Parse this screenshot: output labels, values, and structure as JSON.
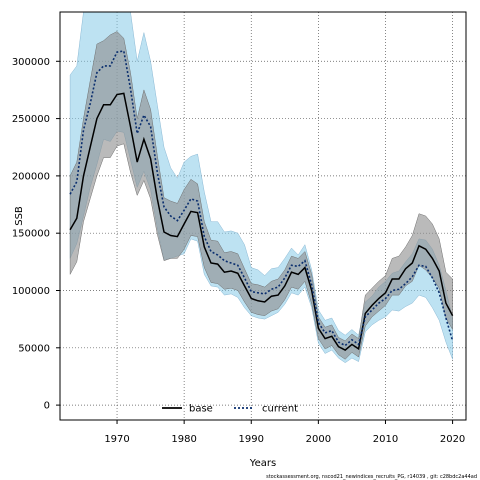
{
  "chart_data": {
    "type": "line",
    "xlabel": "Years",
    "ylabel": "SSB",
    "xlim": [
      1961.5,
      2022
    ],
    "ylim": [
      -13000,
      343000
    ],
    "xticks": [
      1970,
      1980,
      1990,
      2000,
      2010,
      2020
    ],
    "yticks": [
      0,
      50000,
      100000,
      150000,
      200000,
      250000,
      300000
    ],
    "xtick_labels": [
      "1970",
      "1980",
      "1990",
      "2000",
      "2010",
      "2020"
    ],
    "ytick_labels": [
      "0",
      "50000",
      "100000",
      "150000",
      "200000",
      "250000",
      "300000"
    ],
    "grid": true,
    "legend_position": "bottom-center",
    "footnote": "stockassessment.org, nscod21_newindices_recruits_PG, r14039 , git: c28bdc2a44ad",
    "colors": {
      "base": "#000000",
      "current": "#0a2e6e",
      "base_band": "#8c8c8c",
      "current_band": "#87cbe8"
    },
    "series": [
      {
        "name": "base",
        "style": "solid",
        "x": [
          1963,
          1964,
          1965,
          1966,
          1967,
          1968,
          1969,
          1970,
          1971,
          1972,
          1973,
          1974,
          1975,
          1976,
          1977,
          1978,
          1979,
          1980,
          1981,
          1982,
          1983,
          1984,
          1985,
          1986,
          1987,
          1988,
          1989,
          1990,
          1991,
          1992,
          1993,
          1994,
          1995,
          1996,
          1997,
          1998,
          1999,
          2000,
          2001,
          2002,
          2003,
          2004,
          2005,
          2006,
          2007,
          2008,
          2009,
          2010,
          2011,
          2012,
          2013,
          2014,
          2015,
          2016,
          2017,
          2018,
          2019,
          2020
        ],
        "y": [
          153000,
          163000,
          200000,
          225000,
          250000,
          262000,
          262000,
          271000,
          272000,
          243000,
          212000,
          232000,
          215000,
          180000,
          151000,
          148000,
          147000,
          158000,
          169000,
          168000,
          138000,
          124000,
          123000,
          116000,
          117000,
          115000,
          104000,
          93000,
          91000,
          90000,
          95000,
          96000,
          104000,
          116000,
          114000,
          120000,
          100000,
          67000,
          58000,
          60000,
          51000,
          48000,
          53000,
          49000,
          80000,
          87000,
          93000,
          98000,
          110000,
          110000,
          119000,
          124000,
          139000,
          136000,
          128000,
          117000,
          89000,
          78000
        ],
        "lower": [
          114000,
          125000,
          160000,
          180000,
          200000,
          216000,
          216000,
          226000,
          228000,
          203000,
          183000,
          196000,
          180000,
          149000,
          126000,
          128000,
          128000,
          136000,
          148000,
          147000,
          120000,
          107000,
          106000,
          101000,
          102000,
          100000,
          90000,
          81000,
          79000,
          78000,
          82000,
          84000,
          92000,
          103000,
          101000,
          108000,
          88000,
          58000,
          49000,
          52000,
          44000,
          40000,
          46000,
          42000,
          69000,
          77000,
          82000,
          87000,
          96000,
          96000,
          104000,
          108000,
          122000,
          118000,
          111000,
          102000,
          76000,
          66000
        ],
        "upper": [
          200000,
          212000,
          250000,
          283000,
          315000,
          318000,
          323000,
          326000,
          320000,
          290000,
          250000,
          275000,
          258000,
          218000,
          181000,
          178000,
          176000,
          188000,
          197000,
          193000,
          160000,
          144000,
          143000,
          133000,
          134000,
          132000,
          119000,
          106000,
          105000,
          103000,
          108000,
          110000,
          118000,
          130000,
          128000,
          134000,
          114000,
          77000,
          68000,
          70000,
          59000,
          56000,
          62000,
          58000,
          96000,
          102000,
          108000,
          113000,
          128000,
          130000,
          138000,
          148000,
          167000,
          165000,
          158000,
          145000,
          116000,
          110000
        ]
      },
      {
        "name": "current",
        "style": "dotted",
        "x": [
          1963,
          1964,
          1965,
          1966,
          1967,
          1968,
          1969,
          1970,
          1971,
          1972,
          1973,
          1974,
          1975,
          1976,
          1977,
          1978,
          1979,
          1980,
          1981,
          1982,
          1983,
          1984,
          1985,
          1986,
          1987,
          1988,
          1989,
          1990,
          1991,
          1992,
          1993,
          1994,
          1995,
          1996,
          1997,
          1998,
          1999,
          2000,
          2001,
          2002,
          2003,
          2004,
          2005,
          2006,
          2007,
          2008,
          2009,
          2010,
          2011,
          2012,
          2013,
          2014,
          2015,
          2016,
          2017,
          2018,
          2019,
          2020
        ],
        "y": [
          184000,
          195000,
          240000,
          263000,
          290000,
          296000,
          296000,
          308000,
          309000,
          276000,
          237000,
          253000,
          243000,
          203000,
          173000,
          165000,
          161000,
          170000,
          180000,
          178000,
          147000,
          134000,
          131000,
          126000,
          124000,
          122000,
          111000,
          99000,
          98000,
          97000,
          101000,
          103000,
          111000,
          122000,
          121000,
          126000,
          105000,
          72000,
          63000,
          65000,
          55000,
          52000,
          57000,
          53000,
          77000,
          83000,
          89000,
          93000,
          100000,
          101000,
          106000,
          112000,
          122000,
          121000,
          111000,
          98000,
          76000,
          56000
        ],
        "lower": [
          128000,
          141000,
          165000,
          190000,
          210000,
          232000,
          230000,
          239000,
          238000,
          214000,
          190000,
          204000,
          188000,
          154000,
          127000,
          128000,
          130000,
          132000,
          145000,
          143000,
          114000,
          104000,
          103000,
          96000,
          97000,
          94000,
          85000,
          78000,
          76000,
          75000,
          78000,
          81000,
          88000,
          98000,
          96000,
          103000,
          85000,
          54000,
          45000,
          48000,
          41000,
          37000,
          41000,
          38000,
          64000,
          70000,
          74000,
          77000,
          83000,
          82000,
          86000,
          89000,
          96000,
          94000,
          85000,
          74000,
          55000,
          40000
        ],
        "upper": [
          288000,
          296000,
          343000,
          343000,
          343000,
          343000,
          343000,
          343000,
          343000,
          343000,
          300000,
          325000,
          300000,
          262000,
          225000,
          207000,
          198000,
          212000,
          217000,
          219000,
          186000,
          160000,
          160000,
          151000,
          152000,
          150000,
          140000,
          120000,
          118000,
          113000,
          119000,
          120000,
          128000,
          137000,
          131000,
          140000,
          118000,
          83000,
          74000,
          76000,
          65000,
          61000,
          66000,
          61000,
          90000,
          95000,
          103000,
          108000,
          115000,
          117000,
          125000,
          132000,
          145000,
          144000,
          136000,
          122000,
          100000,
          76000
        ]
      }
    ]
  }
}
